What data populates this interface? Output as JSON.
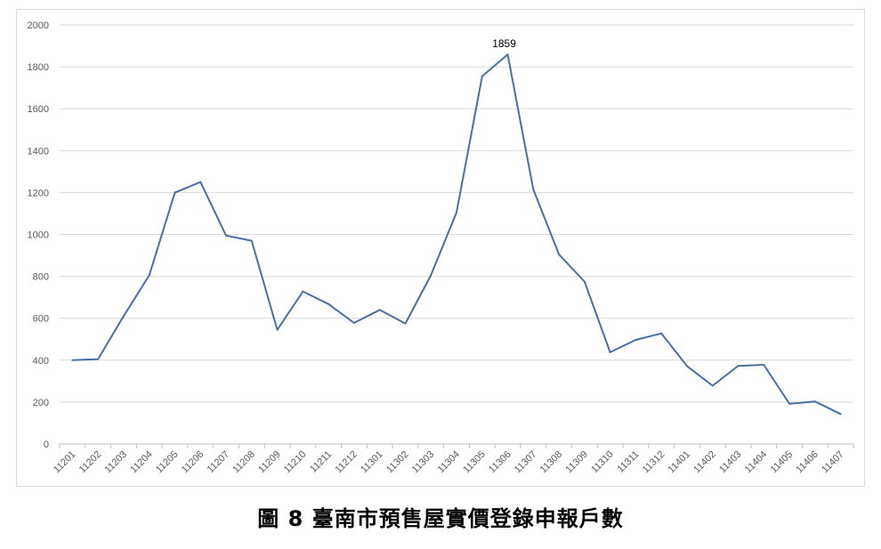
{
  "caption": "圖 8 臺南市預售屋實價登錄申報戶數",
  "chart_data": {
    "type": "line",
    "title": "",
    "xlabel": "",
    "ylabel": "",
    "ylim": [
      0,
      2000
    ],
    "yticks": [
      0,
      200,
      400,
      600,
      800,
      1000,
      1200,
      1400,
      1600,
      1800,
      2000
    ],
    "grid": true,
    "legend": "none",
    "line_color": "#4a6fa5",
    "categories": [
      "11201",
      "11202",
      "11203",
      "11204",
      "11205",
      "11206",
      "11207",
      "11208",
      "11209",
      "11210",
      "11211",
      "11212",
      "11301",
      "11302",
      "11303",
      "11304",
      "11305",
      "11306",
      "11307",
      "11308",
      "11309",
      "11310",
      "11311",
      "11312",
      "11401",
      "11402",
      "11403",
      "11404",
      "11405",
      "11406",
      "11407"
    ],
    "values": [
      400,
      405,
      610,
      805,
      1200,
      1250,
      995,
      970,
      545,
      728,
      668,
      578,
      640,
      575,
      805,
      1105,
      1755,
      1859,
      1215,
      905,
      775,
      438,
      497,
      528,
      372,
      278,
      373,
      378,
      192,
      203,
      143
    ],
    "data_labels": [
      {
        "category": "11306",
        "text": "1859"
      }
    ]
  }
}
